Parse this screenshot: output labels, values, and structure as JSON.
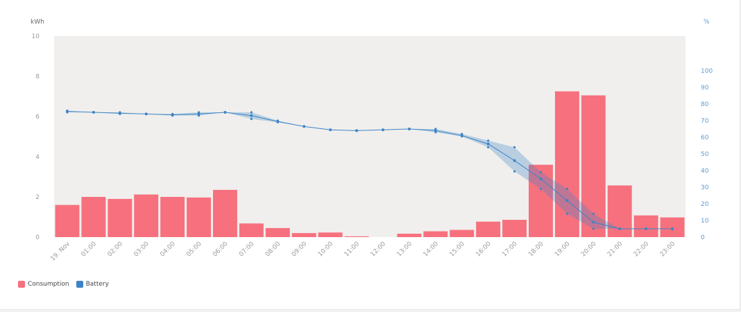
{
  "chart_data": {
    "type": "bar",
    "categories": [
      "19. Nov",
      "01:00",
      "02:00",
      "03:00",
      "04:00",
      "05:00",
      "06:00",
      "07:00",
      "08:00",
      "09:00",
      "10:00",
      "11:00",
      "12:00",
      "13:00",
      "14:00",
      "15:00",
      "16:00",
      "17:00",
      "18:00",
      "19:00",
      "20:00",
      "21:00",
      "22:00",
      "23:00"
    ],
    "y_left": {
      "unit": "kWh",
      "ylim": [
        0,
        10
      ],
      "ticks": [
        0,
        2,
        4,
        6,
        8,
        10
      ]
    },
    "y_right": {
      "unit": "%",
      "ylim": [
        0,
        100
      ],
      "ticks": [
        0,
        10,
        20,
        30,
        40,
        50,
        60,
        70,
        80,
        90,
        100
      ]
    },
    "series": [
      {
        "name": "Consumption",
        "type": "bar",
        "axis": "left",
        "color": "#f7707e",
        "values": [
          1.6,
          2.0,
          1.9,
          2.12,
          2.0,
          1.97,
          2.35,
          0.68,
          0.45,
          0.2,
          0.23,
          0.04,
          0.0,
          0.17,
          0.29,
          0.36,
          0.77,
          0.86,
          3.6,
          7.25,
          7.05,
          2.57,
          1.08,
          0.98
        ]
      },
      {
        "name": "Battery",
        "type": "line-range",
        "axis": "right",
        "color": "#3d84c6",
        "values": [
          75.5,
          75,
          74.5,
          74,
          73.5,
          74,
          75,
          73,
          69.5,
          66.5,
          64.5,
          64,
          64.5,
          65,
          64,
          61,
          56,
          46,
          35,
          22,
          9,
          5,
          5,
          5
        ],
        "low": [
          75,
          75,
          74,
          74,
          73,
          73,
          75,
          71,
          69,
          66.5,
          64.5,
          64,
          64.5,
          65,
          63,
          60.5,
          54,
          39.5,
          29,
          14,
          5,
          5,
          5,
          5
        ],
        "high": [
          76,
          75,
          75,
          74,
          74,
          75,
          75,
          75,
          70,
          66.5,
          64.5,
          64,
          64.5,
          65,
          65,
          62,
          58,
          54,
          39,
          29,
          14,
          5,
          5,
          5
        ]
      }
    ],
    "grid": false,
    "legend_position": "bottom-left"
  }
}
